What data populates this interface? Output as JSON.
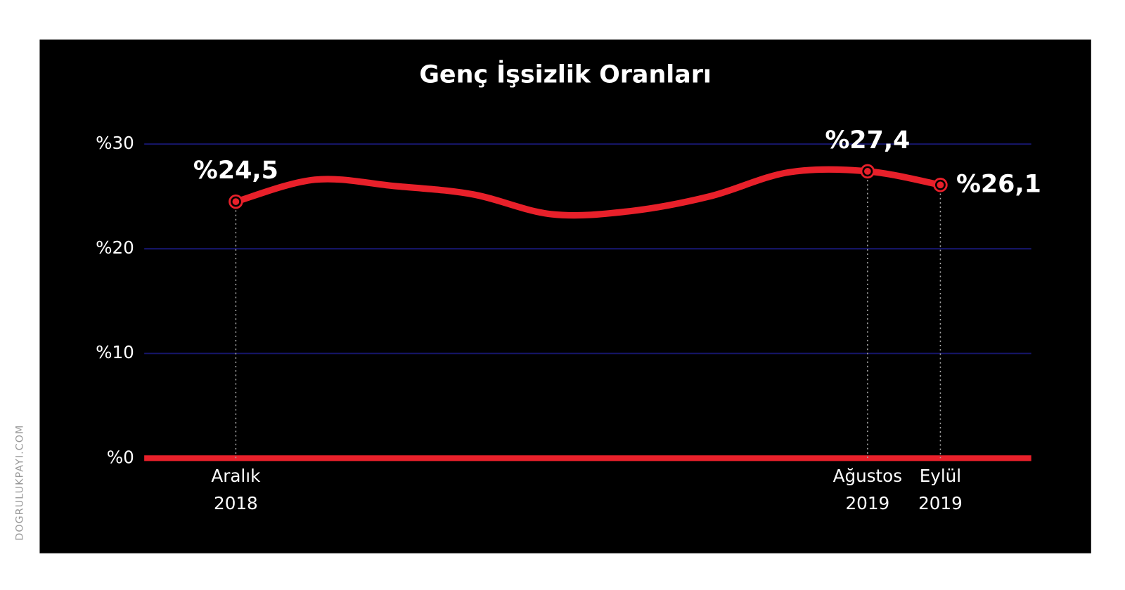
{
  "chart_data": {
    "type": "line",
    "title": "Genç İşsizlik Oranları",
    "categories": [
      "Aralık 2018",
      null,
      null,
      null,
      null,
      null,
      null,
      null,
      "Ağustos 2019",
      "Eylül 2019"
    ],
    "series": [
      {
        "name": "Genç İşsizlik Oranı",
        "color": "#e8202a",
        "values": [
          24.5,
          26.6,
          26.0,
          25.2,
          23.3,
          23.6,
          25.0,
          27.3,
          27.4,
          26.1
        ],
        "value_labels": [
          "%24,5",
          null,
          null,
          null,
          null,
          null,
          null,
          null,
          "%27,4",
          "%26,1"
        ]
      }
    ],
    "ylim": [
      0,
      30
    ],
    "yticks": [
      {
        "value": 0,
        "label": "%0"
      },
      {
        "value": 10,
        "label": "%10"
      },
      {
        "value": 20,
        "label": "%20"
      },
      {
        "value": 30,
        "label": "%30"
      }
    ],
    "grid": true,
    "watermark": "DOGRULUKPAYI.COM"
  }
}
